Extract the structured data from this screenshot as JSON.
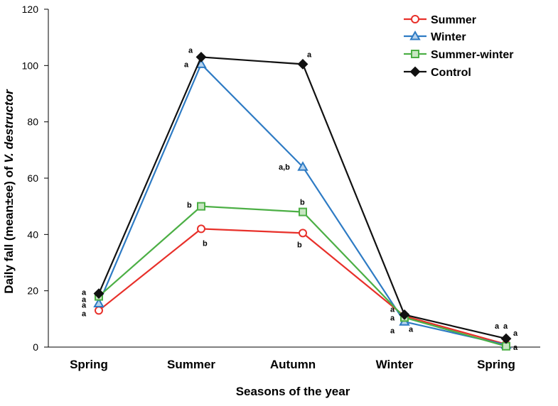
{
  "chart_data": {
    "type": "line",
    "xlabel": "Seasons of the year",
    "ylabel_prefix": "Daily fall (mean±ee) of ",
    "ylabel_species": "V. destructor",
    "ylim": [
      0,
      120
    ],
    "yticks": [
      0,
      20,
      40,
      60,
      80,
      100,
      120
    ],
    "categories": [
      "Spring",
      "Summer",
      "Autumn",
      "Winter",
      "Spring"
    ],
    "series": [
      {
        "name": "Summer",
        "color": "#e8302a",
        "marker": "circle",
        "values": [
          13,
          42,
          40.5,
          11,
          1
        ]
      },
      {
        "name": "Winter",
        "color": "#2e7bc4",
        "marker": "triangle",
        "values": [
          15.5,
          100.5,
          64,
          9,
          0.8
        ]
      },
      {
        "name": "Summer-winter",
        "color": "#4caf45",
        "marker": "square",
        "values": [
          18,
          50,
          48,
          10.5,
          0.3
        ]
      },
      {
        "name": "Control",
        "color": "#111111",
        "marker": "diamond",
        "values": [
          19,
          103,
          100.5,
          11.5,
          3
        ]
      }
    ],
    "annotations": [
      {
        "text": "a",
        "cat": 0,
        "y": 16,
        "dx": -24,
        "dy": 0
      },
      {
        "text": "a",
        "cat": 0,
        "y": 16,
        "dx": -24,
        "dy": -10
      },
      {
        "text": "a",
        "cat": 0,
        "y": 16,
        "dx": -24,
        "dy": 8
      },
      {
        "text": "a",
        "cat": 0,
        "y": 16,
        "dx": -24,
        "dy": 20
      },
      {
        "text": "a",
        "cat": 1,
        "y": 103,
        "dx": -18,
        "dy": -6
      },
      {
        "text": "a",
        "cat": 1,
        "y": 100.5,
        "dx": -24,
        "dy": 4
      },
      {
        "text": "b",
        "cat": 1,
        "y": 50,
        "dx": -20,
        "dy": 2
      },
      {
        "text": "b",
        "cat": 1,
        "y": 42,
        "dx": 2,
        "dy": 24
      },
      {
        "text": "a",
        "cat": 2,
        "y": 100.5,
        "dx": 6,
        "dy": -10
      },
      {
        "text": "a,b",
        "cat": 2,
        "y": 64,
        "dx": -34,
        "dy": 4
      },
      {
        "text": "b",
        "cat": 2,
        "y": 50,
        "dx": -4,
        "dy": -2
      },
      {
        "text": "b",
        "cat": 2,
        "y": 40.5,
        "dx": -8,
        "dy": 20
      },
      {
        "text": "a",
        "cat": 3,
        "y": 12,
        "dx": -20,
        "dy": -2
      },
      {
        "text": "a",
        "cat": 3,
        "y": 12,
        "dx": -20,
        "dy": 10
      },
      {
        "text": "a",
        "cat": 3,
        "y": 12,
        "dx": -20,
        "dy": 28
      },
      {
        "text": "a",
        "cat": 3,
        "y": 9,
        "dx": 6,
        "dy": 14
      },
      {
        "text": "a",
        "cat": 4,
        "y": 3,
        "dx": -16,
        "dy": -14
      },
      {
        "text": "a",
        "cat": 4,
        "y": 3,
        "dx": -4,
        "dy": -14
      },
      {
        "text": "a",
        "cat": 4,
        "y": 3,
        "dx": 10,
        "dy": -4
      },
      {
        "text": "a",
        "cat": 4,
        "y": 1,
        "dx": 10,
        "dy": 8
      }
    ]
  }
}
